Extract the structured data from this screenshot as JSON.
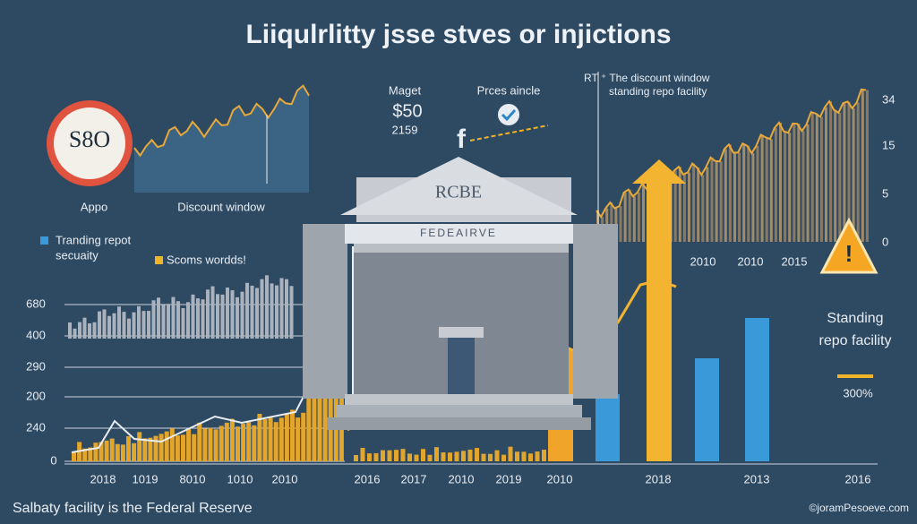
{
  "title": "Liiqulrlitty jsse stves or injictions",
  "badge": {
    "text": "S8O",
    "caption": "Appo"
  },
  "top_chart": {
    "caption": "Discount window"
  },
  "market": {
    "label": "Maget",
    "value": "$50",
    "sub": "2159"
  },
  "price": {
    "label": "Prces aincle"
  },
  "top_right": {
    "note": "RT ⁺ The discount window",
    "note2": "standing repo facility",
    "yticks": [
      "34",
      "15",
      "5",
      "0"
    ],
    "xticks": [
      "2010",
      "2010",
      "2015"
    ]
  },
  "building": {
    "sign": "RCBE",
    "frieze": "FEDEAIRVE"
  },
  "legend": [
    {
      "line1": "Tranding repot",
      "line2": "secuaity"
    },
    {
      "line1": "Scoms wordds!"
    }
  ],
  "left_axis": [
    "680",
    "400",
    "290",
    "200",
    "240",
    "0"
  ],
  "x_axis": [
    "2018",
    "1019",
    "8010",
    "1010",
    "2010",
    "2016",
    "2017",
    "2010",
    "2019",
    "2010",
    "2018",
    "2013",
    "2016"
  ],
  "side": {
    "line1": "Standing",
    "line2": "repo facility",
    "value": "300%"
  },
  "footer": {
    "caption": "Salbaty facility is the Federal Reserve",
    "credit": "©joramPesoeve.com"
  }
}
